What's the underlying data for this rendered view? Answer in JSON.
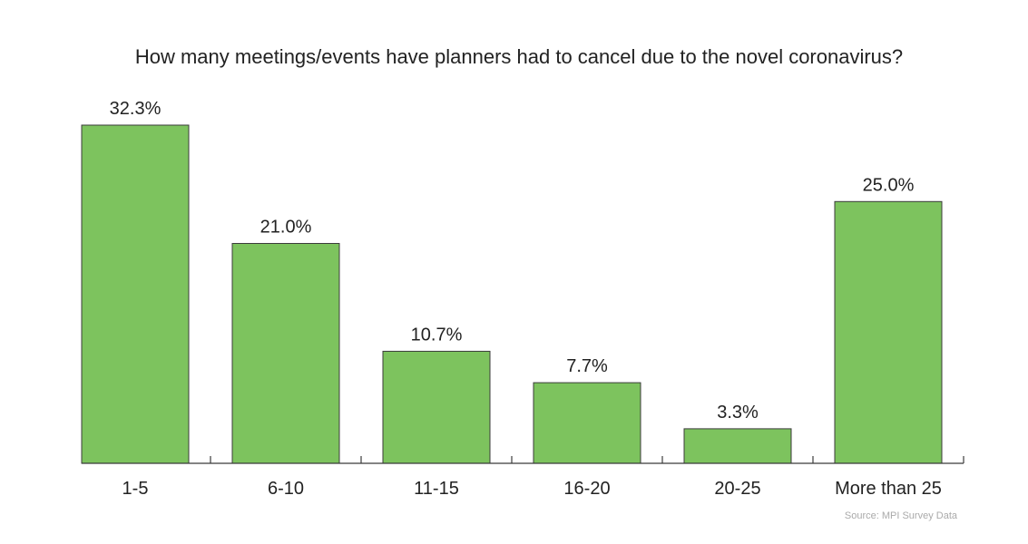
{
  "chart_data": {
    "type": "bar",
    "title": "How many meetings/events have planners had to cancel due to the novel coronavirus?",
    "categories": [
      "1-5",
      "6-10",
      "11-15",
      "16-20",
      "20-25",
      "More than 25"
    ],
    "values": [
      32.3,
      21.0,
      10.7,
      7.7,
      3.3,
      25.0
    ],
    "value_labels": [
      "32.3%",
      "21.0%",
      "10.7%",
      "7.7%",
      "3.3%",
      "25.0%"
    ],
    "xlabel": "",
    "ylabel": "",
    "ylim": [
      0,
      32.3
    ],
    "grid": false,
    "bar_color": "#7dc35e",
    "source": "Source: MPI Survey Data"
  }
}
